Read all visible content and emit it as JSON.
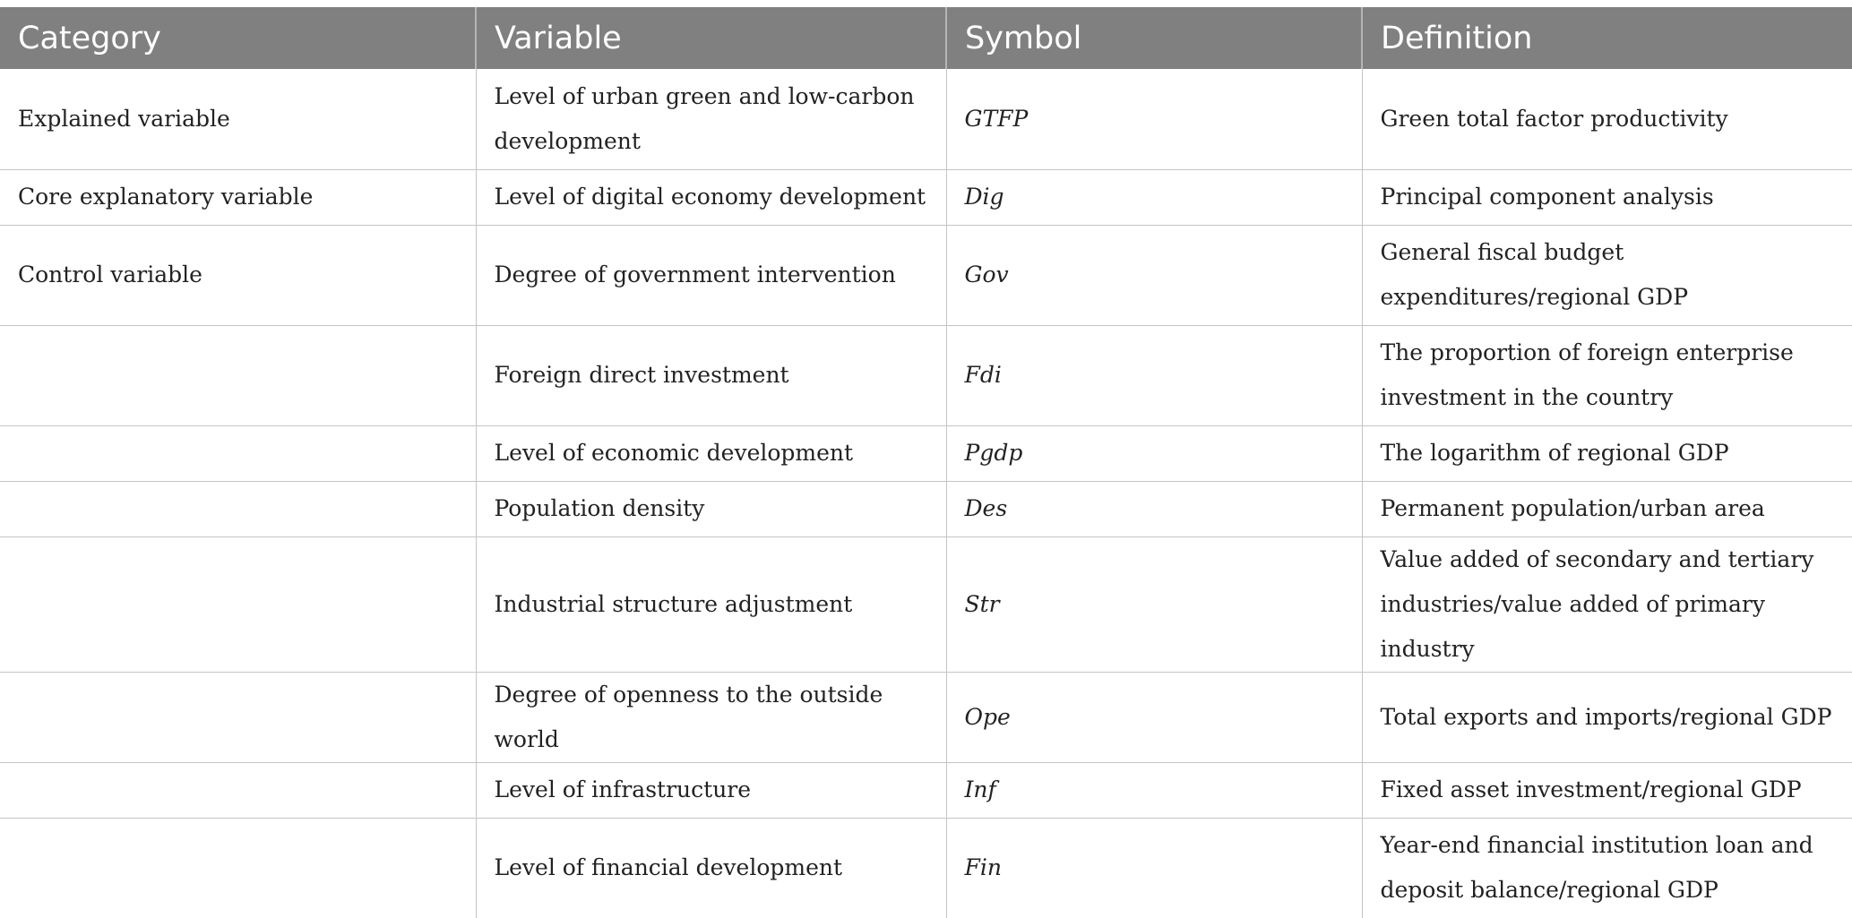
{
  "table": {
    "headers": [
      "Category",
      "Variable",
      "Symbol",
      "Definition"
    ],
    "rows": [
      {
        "category": "Explained variable",
        "variable": "Level of urban green and low-carbon development",
        "symbol": "GTFP",
        "definition": "Green total factor productivity"
      },
      {
        "category": "Core explanatory variable",
        "variable": "Level of digital economy development",
        "symbol": "Dig",
        "definition": "Principal component analysis"
      },
      {
        "category": "Control variable",
        "variable": "Degree of government intervention",
        "symbol": "Gov",
        "definition": "General fiscal budget expenditures/regional GDP"
      },
      {
        "category": "",
        "variable": "Foreign direct investment",
        "symbol": "Fdi",
        "definition": "The proportion of foreign enterprise investment in the country"
      },
      {
        "category": "",
        "variable": "Level of economic development",
        "symbol": "Pgdp",
        "definition": "The logarithm of regional GDP"
      },
      {
        "category": "",
        "variable": "Population density",
        "symbol": "Des",
        "definition": "Permanent population/urban area"
      },
      {
        "category": "",
        "variable": "Industrial structure adjustment",
        "symbol": "Str",
        "definition": "Value added of secondary and tertiary industries/value added of primary industry"
      },
      {
        "category": "",
        "variable": "Degree of openness to the outside world",
        "symbol": "Ope",
        "definition": "Total exports and imports/regional GDP"
      },
      {
        "category": "",
        "variable": "Level of infrastructure",
        "symbol": "Inf",
        "definition": "Fixed asset investment/regional GDP"
      },
      {
        "category": "",
        "variable": "Level of financial development",
        "symbol": "Fin",
        "definition": "Year-end financial institution loan and deposit balance/regional GDP"
      }
    ]
  }
}
